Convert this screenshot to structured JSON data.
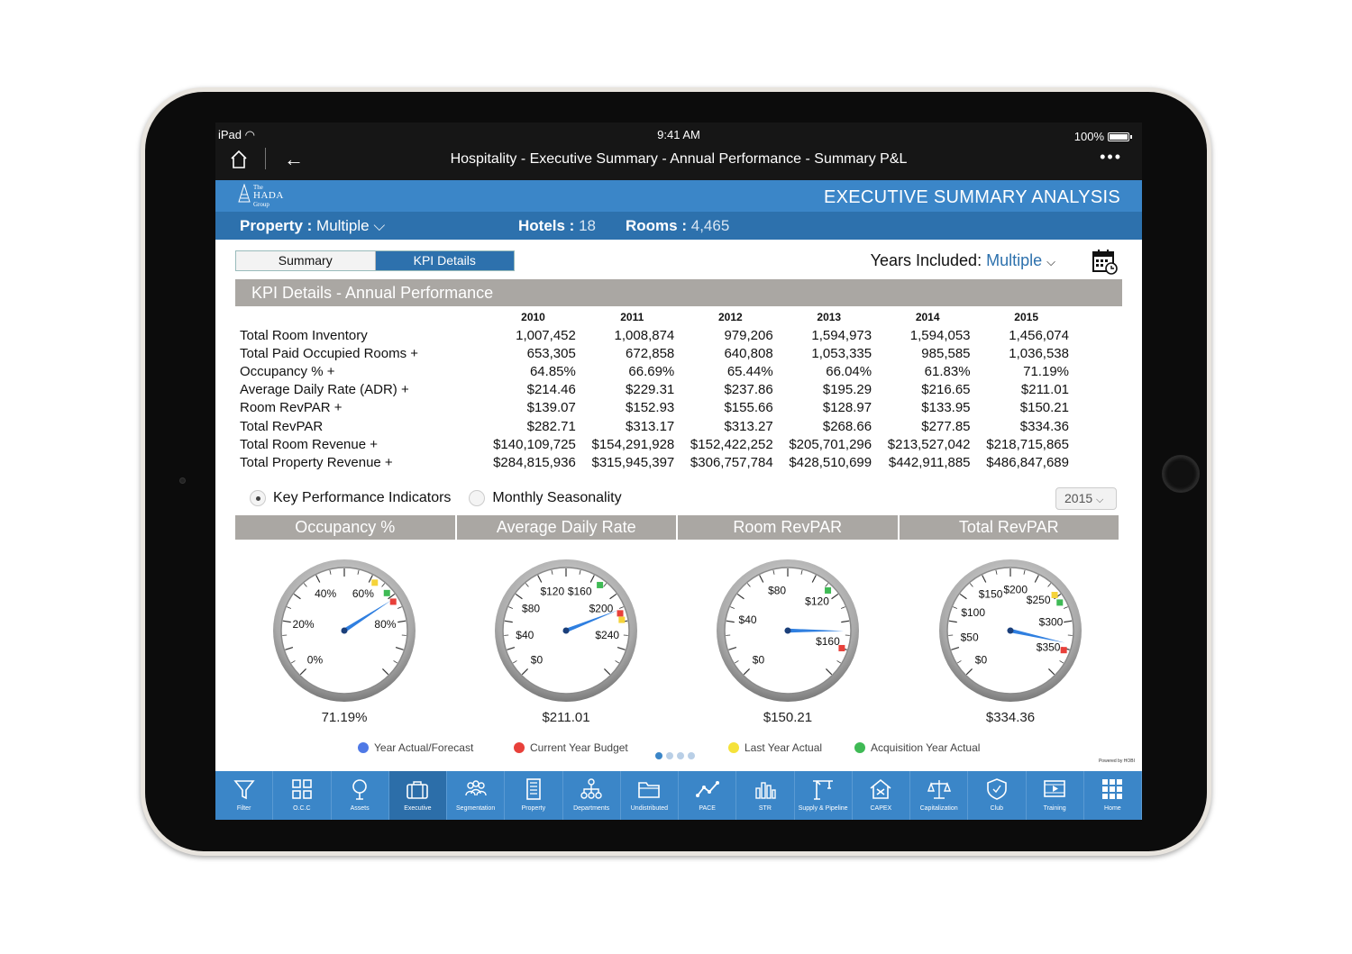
{
  "status": {
    "device": "iPad",
    "time": "9:41 AM",
    "battery": "100%"
  },
  "nav": {
    "title": "Hospitality - Executive Summary - Annual Performance - Summary P&L",
    "back": "←",
    "more": "•••"
  },
  "logo": {
    "line1": "The",
    "line2": "HADA",
    "line3": "Group"
  },
  "header": {
    "title": "EXECUTIVE SUMMARY ANALYSIS"
  },
  "subheader": {
    "property_label": "Property :",
    "property_value": "Multiple",
    "hotels_label": "Hotels :",
    "hotels_value": "18",
    "rooms_label": "Rooms :",
    "rooms_value": "4,465"
  },
  "tabs": {
    "summary": "Summary",
    "kpi": "KPI Details"
  },
  "years": {
    "label": "Years Included:",
    "value": "Multiple"
  },
  "section": {
    "title": "KPI Details - Annual Performance"
  },
  "table": {
    "years": [
      "2010",
      "2011",
      "2012",
      "2013",
      "2014",
      "2015"
    ],
    "rows": [
      {
        "label": "Total Room Inventory",
        "values": [
          "1,007,452",
          "1,008,874",
          "979,206",
          "1,594,973",
          "1,594,053",
          "1,456,074"
        ]
      },
      {
        "label": "Total Paid Occupied Rooms  +",
        "values": [
          "653,305",
          "672,858",
          "640,808",
          "1,053,335",
          "985,585",
          "1,036,538"
        ]
      },
      {
        "label": "Occupancy %  +",
        "values": [
          "64.85%",
          "66.69%",
          "65.44%",
          "66.04%",
          "61.83%",
          "71.19%"
        ]
      },
      {
        "label": "Average Daily Rate (ADR)  +",
        "values": [
          "$214.46",
          "$229.31",
          "$237.86",
          "$195.29",
          "$216.65",
          "$211.01"
        ]
      },
      {
        "label": "Room RevPAR  +",
        "values": [
          "$139.07",
          "$152.93",
          "$155.66",
          "$128.97",
          "$133.95",
          "$150.21"
        ]
      },
      {
        "label": "Total RevPAR",
        "values": [
          "$282.71",
          "$313.17",
          "$313.27",
          "$268.66",
          "$277.85",
          "$334.36"
        ]
      },
      {
        "label": "Total Room Revenue  +",
        "values": [
          "$140,109,725",
          "$154,291,928",
          "$152,422,252",
          "$205,701,296",
          "$213,527,042",
          "$218,715,865"
        ]
      },
      {
        "label": "Total Property Revenue  +",
        "values": [
          "$284,815,936",
          "$315,945,397",
          "$306,757,784",
          "$428,510,699",
          "$442,911,885",
          "$486,847,689"
        ]
      }
    ]
  },
  "radios": {
    "kpi": "Key Performance Indicators",
    "seasonality": "Monthly Seasonality"
  },
  "year_select": "2015",
  "gauges": [
    {
      "title": "Occupancy %",
      "value_text": "71.19%",
      "min": 0,
      "max": 100,
      "value": 71.19,
      "ticks": [
        "0%",
        "20%",
        "40%",
        "60%",
        "80%"
      ],
      "tick_values": [
        0,
        20,
        40,
        60,
        80
      ],
      "markers": [
        {
          "value": 62,
          "color": "#f5d33a"
        },
        {
          "value": 68,
          "color": "#3fba55"
        },
        {
          "value": 72,
          "color": "#e8403a"
        }
      ]
    },
    {
      "title": "Average Daily Rate",
      "value_text": "$211.01",
      "min": 0,
      "max": 280,
      "value": 211.01,
      "ticks": [
        "$0",
        "$40",
        "$80",
        "$120",
        "$160",
        "$200",
        "$240"
      ],
      "tick_values": [
        0,
        40,
        80,
        120,
        160,
        200,
        240
      ],
      "markers": [
        {
          "value": 178,
          "color": "#3fba55"
        },
        {
          "value": 215,
          "color": "#e8403a"
        },
        {
          "value": 222,
          "color": "#f5d33a"
        }
      ]
    },
    {
      "title": "Room RevPAR",
      "value_text": "$150.21",
      "min": 0,
      "max": 180,
      "value": 150.21,
      "ticks": [
        "$0",
        "$40",
        "$80",
        "$120",
        "$160"
      ],
      "tick_values": [
        0,
        40,
        80,
        120,
        160
      ],
      "markers": [
        {
          "value": 120,
          "color": "#3fba55"
        },
        {
          "value": 162,
          "color": "#e8403a"
        }
      ]
    },
    {
      "title": "Total RevPAR",
      "value_text": "$334.36",
      "min": 0,
      "max": 380,
      "value": 334.36,
      "ticks": [
        "$0",
        "$50",
        "$100",
        "$150",
        "$200",
        "$250",
        "$300",
        "$350"
      ],
      "tick_values": [
        0,
        50,
        100,
        150,
        200,
        250,
        300,
        350
      ],
      "markers": [
        {
          "value": 262,
          "color": "#f5d33a"
        },
        {
          "value": 275,
          "color": "#3fba55"
        },
        {
          "value": 345,
          "color": "#e8403a"
        }
      ]
    }
  ],
  "legend": [
    {
      "label": "Year Actual/Forecast",
      "color": "#4f79e6"
    },
    {
      "label": "Current Year Budget",
      "color": "#e8403a"
    },
    {
      "label": "Last Year Actual",
      "color": "#f5e23a"
    },
    {
      "label": "Acquisition Year Actual",
      "color": "#3fba55"
    }
  ],
  "powered": "Powered by HOBI",
  "toolbar": [
    {
      "label": "Filter",
      "icon": "filter-icon"
    },
    {
      "label": "O.C.C",
      "icon": "grid-icon"
    },
    {
      "label": "Assets",
      "icon": "tree-icon"
    },
    {
      "label": "Executive",
      "icon": "briefcase-icon",
      "active": true
    },
    {
      "label": "Segmentation",
      "icon": "people-icon"
    },
    {
      "label": "Property",
      "icon": "building-icon"
    },
    {
      "label": "Departments",
      "icon": "org-chart-icon"
    },
    {
      "label": "Undistributed",
      "icon": "folder-icon"
    },
    {
      "label": "PACE",
      "icon": "line-chart-icon"
    },
    {
      "label": "STR",
      "icon": "bar-chart-icon"
    },
    {
      "label": "Supply & Pipeline",
      "icon": "crane-icon"
    },
    {
      "label": "CAPEX",
      "icon": "house-tools-icon"
    },
    {
      "label": "Capitalization",
      "icon": "scales-icon"
    },
    {
      "label": "Club",
      "icon": "shield-icon"
    },
    {
      "label": "Training",
      "icon": "video-icon"
    },
    {
      "label": "Home",
      "icon": "apps-grid-icon"
    }
  ]
}
